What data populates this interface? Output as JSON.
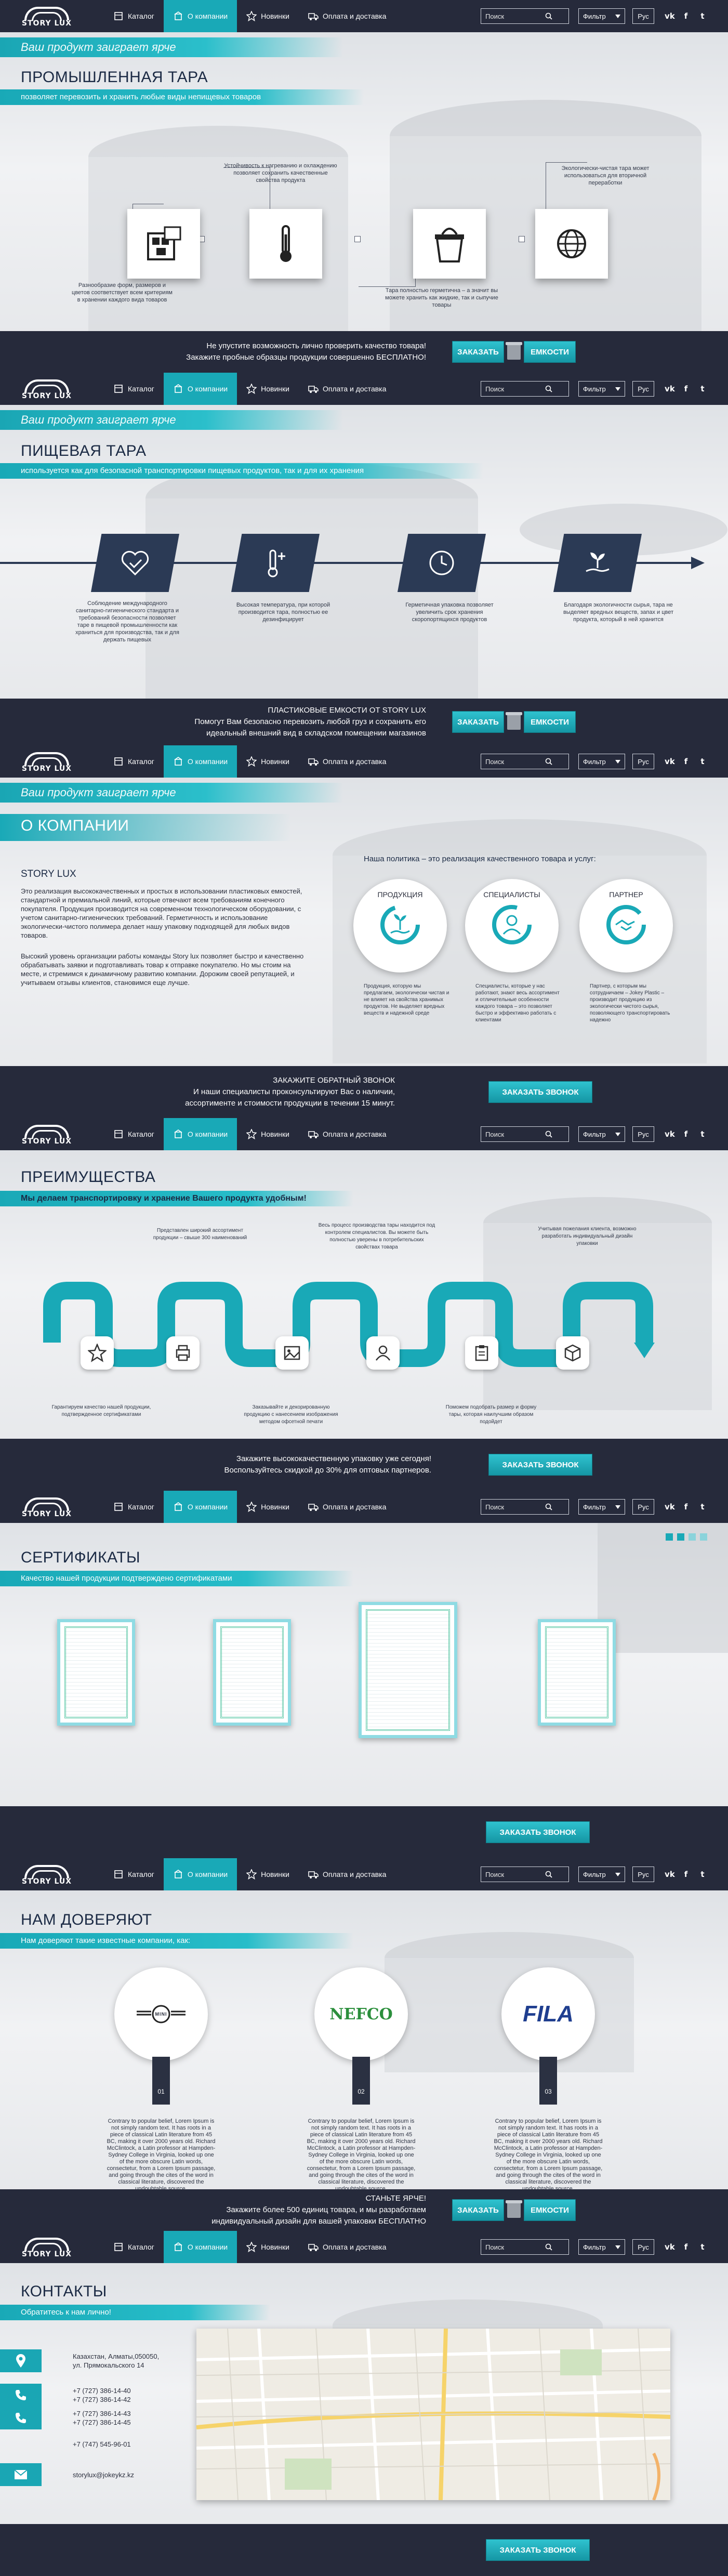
{
  "nav": {
    "logo_text": "STORY LUX",
    "menu": [
      "Каталог",
      "О компании",
      "Новинки",
      "Оплата и доставка"
    ],
    "search_placeholder": "Поиск",
    "filter_label": "Фильтр",
    "lang_label": "Рус",
    "socials": [
      "vk-icon",
      "facebook-icon",
      "twitter-icon"
    ]
  },
  "slogan": "Ваш продукт заиграет ярче",
  "section_industrial": {
    "title": "ПРОМЫШЛЕННАЯ ТАРА",
    "subtitle": "позволяет перевозить и хранить любые виды непищевых товаров",
    "notes": [
      "Разнообразие форм, размеров и цветов соответствует всем критериям в хранении каждого вида товаров",
      "Устойчивость к нагреванию и охлаждению позволяет сохранить качественные свойства продукта",
      "Тара полностью герметична – а значит вы можете хранить как жидкие, так и сыпучие товары",
      "Экологически-чистая тара может использоваться для вторичной переработки"
    ],
    "cta_line1": "Не упустите возможность лично проверить качество товара!",
    "cta_line2": "Закажите пробные образцы продукции совершенно БЕСПЛАТНО!",
    "button_left": "ЗАКАЗАТЬ",
    "button_right": "ЕМКОСТИ"
  },
  "section_food": {
    "title": "ПИЩЕВАЯ ТАРА",
    "subtitle": "используется как для безопасной транспортировки пищевых продуктов, так и для их хранения",
    "notes": [
      "Соблюдение международного санитарно-гигиенического стандарта и требований безопасности позволяет таре в пищевой промышленности как храниться для производства, так и для держать пищевых",
      "Высокая температура, при которой производится тара, полностью ее дезинфицирует",
      "Герметичная упаковка позволяет увеличить срок хранения скоропортящихся продуктов",
      "Благодаря экологичности сырья, тара не выделяет вредных веществ, запах и цвет продукта, который в ней хранится"
    ],
    "cta_line1": "ПЛАСТИКОВЫЕ ЕМКОСТИ ОТ STORY LUX",
    "cta_line2": "Помогут Вам безопасно перевозить любой груз и сохранить его",
    "cta_line3": "идеальный внешний вид в складском помещении магазинов",
    "button_left": "ЗАКАЗАТЬ",
    "button_right": "ЕМКОСТИ"
  },
  "section_about": {
    "title": "О КОМПАНИИ",
    "brand": "STORY LUX",
    "para1": "Это реализация высококачественных и простых в использовании пластиковых емкостей, стандартной и премиальной линий, которые отвечают всем требованиям конечного покупателя. Продукция производится на современном технологическом оборудовании, с учетом санитарно-гигиенических требований. Герметичность и использование экологически-чистого полимера делает нашу упаковку подходящей для любых видов товаров.",
    "para2": "Высокий уровень организации работы команды Story lux позволяет быстро и качественно обрабатывать заявки и подготавливать товар к отправке покупателю. Но мы стоим на месте, и стремимся к динамичному развитию компании. Дорожим своей репутацией, и учитываем отзывы клиентов, становимся еще лучше.",
    "policy": "Наша политика – это реализация качественного товара и услуг:",
    "circles": [
      "ПРОДУКЦИЯ",
      "СПЕЦИАЛИСТЫ",
      "ПАРТНЕР"
    ],
    "circle_notes": [
      "Продукция, которую мы предлагаем, экологически чистая и не влияет на свойства хранимых продуктов. Не выделяет вредных веществ и надежной среде",
      "Специалисты, которые у нас работают, знают весь ассортимент и отличительные особенности каждого товара – это позволяет быстро и эффективно работать с клиентами",
      "Партнер, с которым мы сотрудничаем – Jokey Plastic – производит продукцию из экологически чистого сырья, позволяющего транспортировать надежно"
    ],
    "cta_line1": "ЗАКАЖИТЕ ОБРАТНЫЙ ЗВОНОК",
    "cta_line2": "И наши специалисты проконсультируют Вас о наличии,",
    "cta_line3": "ассортименте и стоимости продукции в течении 15 минут.",
    "button": "ЗАКАЗАТЬ ЗВОНОК"
  },
  "section_advantages": {
    "title": "ПРЕИМУЩЕСТВА",
    "subtitle": "Мы делаем транспортировку и хранение Вашего продукта удобным!",
    "notes_top": [
      "Представлен широкий ассортимент продукции – свыше 300 наименований",
      "Весь процесс производства тары находится под контролем специалистов. Вы можете быть полностью уверены в потребительских свойствах товара",
      "Учитывая пожелания клиента, возможно разработать индивидуальный дизайн упаковки"
    ],
    "notes_bottom": [
      "Гарантируем качество нашей продукции, подтвержденное сертификатами",
      "Заказывайте и декорированную продукцию с нанесением изображения методом офсетной печати",
      "Поможем подобрать размер и форму тары, которая наилучшим образом подойдет"
    ],
    "cta_line1": "Закажите высококачественную упаковку уже сегодня!",
    "cta_line2": "Воспользуйтесь скидкой до 30% для оптовых партнеров.",
    "button": "ЗАКАЗАТЬ ЗВОНОК"
  },
  "section_certs": {
    "title": "СЕРТИФИКАТЫ",
    "subtitle": "Качество нашей продукции подтверждено сертификатами",
    "button": "ЗАКАЗАТЬ ЗВОНОК"
  },
  "section_trust": {
    "title": "НАМ ДОВЕРЯЮТ",
    "subtitle": "Нам доверяют такие известные компании, как:",
    "partners": [
      "MINI",
      "NEFCO",
      "FILA"
    ],
    "numbers": [
      "01",
      "02",
      "03"
    ],
    "lorem": "Contrary to popular belief, Lorem Ipsum is not simply random text. It has roots in a piece of classical Latin literature from 45 BC, making it over 2000 years old. Richard McClintock, a Latin professor at Hampden-Sydney College in Virginia, looked up one of the more obscure Latin words, consectetur, from a Lorem Ipsum passage, and going through the cites of the word in classical literature, discovered the undoubtable source.",
    "cta_line1": "СТАНЬТЕ ЯРЧЕ!",
    "cta_line2": "Закажите более 500 единиц товара, и мы разработаем",
    "cta_line3": "индивидуальный дизайн для вашей упаковки БЕСПЛАТНО",
    "button_left": "ЗАКАЗАТЬ",
    "button_right": "ЕМКОСТИ"
  },
  "section_contacts": {
    "title": "КОНТАКТЫ",
    "subtitle": "Обратитесь к нам лично!",
    "address_line1": "Казахстан, Алматы,050050,",
    "address_line2": "ул. Прямокальского 14",
    "phones": [
      "+7 (727) 386-14-40",
      "+7 (727) 386-14-42",
      "+7 (727) 386-14-43",
      "+7 (727) 386-14-45",
      "+7 (747) 545-96-01"
    ],
    "email": "storylux@jokeykz.kz",
    "button": "ЗАКАЗАТЬ ЗВОНОК"
  },
  "colors": {
    "accent": "#19a9b7",
    "dark": "#262a3b",
    "navy": "#2b3a55"
  }
}
